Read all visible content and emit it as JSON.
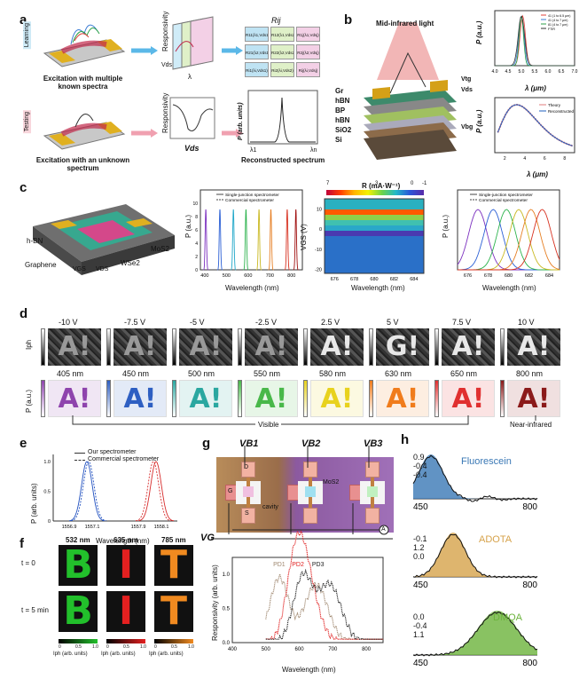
{
  "panels": {
    "a": "a",
    "b": "b",
    "c": "c",
    "d": "d",
    "e": "e",
    "f": "f",
    "g": "g",
    "h": "h"
  },
  "a": {
    "learning_tag": "Learning",
    "testing_tag": "Testing",
    "caption_top": "Excitation with multiple known spectra",
    "caption_bottom": "Excitation with an unknown spectrum",
    "responsivity": "Responsivity",
    "vds": "Vds",
    "lambda": "λ",
    "rij": "Rij",
    "matrix": [
      [
        "R11(λ1,Vds1)",
        "R12(λ1,Vds2)",
        "R1j(λ1,Vdsj)"
      ],
      [
        "R21(λ2,Vds1)",
        "R22(λ2,Vds2)",
        "R2j(λ2,Vdsj)"
      ],
      [
        "Ri1(λi,Vds1)",
        "Ri2(λi,Vds2)",
        "Rij(λi,Vdsj)"
      ]
    ],
    "p_label": "P (arb. units)",
    "l1": "λ1",
    "ln": "λn",
    "recon_caption": "Reconstructed spectrum",
    "matrix_colors": [
      "#bfe3f3",
      "#dff0c8",
      "#f3d0e6"
    ]
  },
  "b": {
    "title": "Mid-infrared light",
    "layers": [
      "Gr",
      "hBN",
      "BP",
      "hBN",
      "SiO2",
      "Si"
    ],
    "vtg": "Vtg",
    "vds": "Vds",
    "vbg": "Vbg",
    "plot1": {
      "ylabel": "P (a.u.)",
      "xlabel": "λ (μm)",
      "xticks": [
        "4.0",
        "4.5",
        "5.0",
        "5.5",
        "6.0",
        "6.5",
        "7.0"
      ],
      "legend": [
        "41 (1 to 6.5 μm)",
        "41 (4 to 7 μm)",
        "81 (4 to 7 μm)",
        "FTIR"
      ],
      "colors": [
        "#e0413a",
        "#3a7bd5",
        "#2ca24a",
        "#333333"
      ]
    },
    "plot2": {
      "ylabel": "P (a.u.)",
      "xlabel": "λ (μm)",
      "xticks": [
        "2",
        "4",
        "6",
        "8"
      ],
      "legend": [
        "Theory",
        "Reconstructed"
      ],
      "colors": [
        "#e07b7b",
        "#1f5fbf"
      ]
    }
  },
  "c": {
    "device_labels": {
      "hbn": "h-BN",
      "graphene": "Graphene",
      "mos2": "MoS2",
      "wse2": "WSe2",
      "vgs": "VGS",
      "vds": "VDS"
    },
    "plot1": {
      "ylabel": "P (a.u.)",
      "xlabel": "Wavelength (nm)",
      "xticks": [
        "400",
        "500",
        "600",
        "700",
        "800"
      ],
      "legend": [
        "Single-junction spectrometer",
        "Commercial spectrometer"
      ],
      "peaks": [
        405,
        470,
        532,
        590,
        650,
        705,
        780,
        820
      ],
      "colors": [
        "#7b2fbf",
        "#2a5fd5",
        "#20a7c9",
        "#2bb24c",
        "#c9b820",
        "#e67e22",
        "#d7301f",
        "#a01010"
      ]
    },
    "plot2": {
      "title": "R (mA·W⁻¹)",
      "cb_ticks": [
        "7",
        "3",
        "0",
        "-1"
      ],
      "ylabel": "VGS (V)",
      "xlabel": "Wavelength (nm)",
      "yticks": [
        "10",
        "0",
        "-10",
        "-20"
      ],
      "xticks": [
        "676",
        "678",
        "680",
        "682",
        "684"
      ]
    },
    "plot3": {
      "ylabel": "P (a.u.)",
      "xlabel": "Wavelength (nm)",
      "xticks": [
        "676",
        "678",
        "680",
        "682",
        "684"
      ],
      "legend": [
        "Single-junction spectrometer",
        "Commercial spectrometer"
      ],
      "peaks": [
        677,
        678.5,
        679.8,
        681,
        682.2,
        683.3
      ],
      "colors": [
        "#7b2fbf",
        "#2a5fd5",
        "#2bb24c",
        "#c9b820",
        "#e67e22",
        "#d7301f"
      ]
    }
  },
  "d": {
    "row1_label": "Iph",
    "voltages": [
      "-10 V",
      "-7.5 V",
      "-5 V",
      "-2.5 V",
      "2.5 V",
      "5 V",
      "7.5 V",
      "10 V"
    ],
    "row2_label": "P (a.u.)",
    "wavelengths": [
      "405 nm",
      "450 nm",
      "500 nm",
      "550 nm",
      "580 nm",
      "630 nm",
      "650 nm",
      "800 nm"
    ],
    "wl_colors": [
      "#8e44ad",
      "#2e5fc2",
      "#2aa7a0",
      "#49b84a",
      "#e8d21e",
      "#f07c1c",
      "#e03030",
      "#8b1a1a"
    ],
    "voltage_glyphs": [
      "A!",
      "A!",
      "A!",
      "A!",
      "A!",
      "G!",
      "A!",
      "A!"
    ],
    "visible": "Visible",
    "nir": "Near-infrared"
  },
  "e": {
    "legend": [
      "Our spectrometer",
      "Commercial spectrometer"
    ],
    "ylabel": "P (arb. units)",
    "xlabel": "Wavelength (nm)",
    "xticks": [
      "1556.9",
      "1557.1",
      "1557.9",
      "1558.1"
    ],
    "yticks": [
      "0",
      "0.5",
      "1.0"
    ],
    "colors": [
      "#1f4fbf",
      "#d72b2b"
    ]
  },
  "f": {
    "wavelengths": [
      "532 nm",
      "635 nm",
      "785 nm"
    ],
    "letters": [
      "B",
      "I",
      "T"
    ],
    "rows": [
      "t = 0",
      "t = 5 min"
    ],
    "colors": [
      "#22c02b",
      "#e42020",
      "#f08a20"
    ],
    "scale_labels": [
      "Iph (arb. units)",
      "Iph (arb. units)",
      "Iph (arb. units)"
    ],
    "scale_ticks": [
      "0",
      "0.5",
      "1.0"
    ]
  },
  "g": {
    "vb": [
      "VB1",
      "VB2",
      "VB3"
    ],
    "vg": "VG",
    "d": "D",
    "gate": "G",
    "s": "S",
    "mos2": "MoS2",
    "cavity": "cavity",
    "ammeter": "A",
    "plot": {
      "ylabel": "Responsivity (arb. units)",
      "xlabel": "Wavelength (nm)",
      "xticks": [
        "400",
        "500",
        "600",
        "700",
        "800"
      ],
      "yticks": [
        "0.0",
        "0.5",
        "1.0"
      ],
      "pd": [
        "PD1",
        "PD2",
        "PD3"
      ],
      "colors": [
        "#a08870",
        "#e02020",
        "#222222"
      ]
    }
  },
  "h": {
    "names": [
      "Fluorescein",
      "ADOTA",
      "DMQA"
    ],
    "values": [
      [
        "0.9",
        "-0.4",
        "-0.4"
      ],
      [
        "-0.1",
        "1.2",
        "0.0"
      ],
      [
        "0.0",
        "-0.4",
        "1.1"
      ]
    ],
    "colors": [
      "#3a78b5",
      "#d6a24a",
      "#6bb33b"
    ],
    "xticks": [
      "450",
      "800"
    ]
  }
}
